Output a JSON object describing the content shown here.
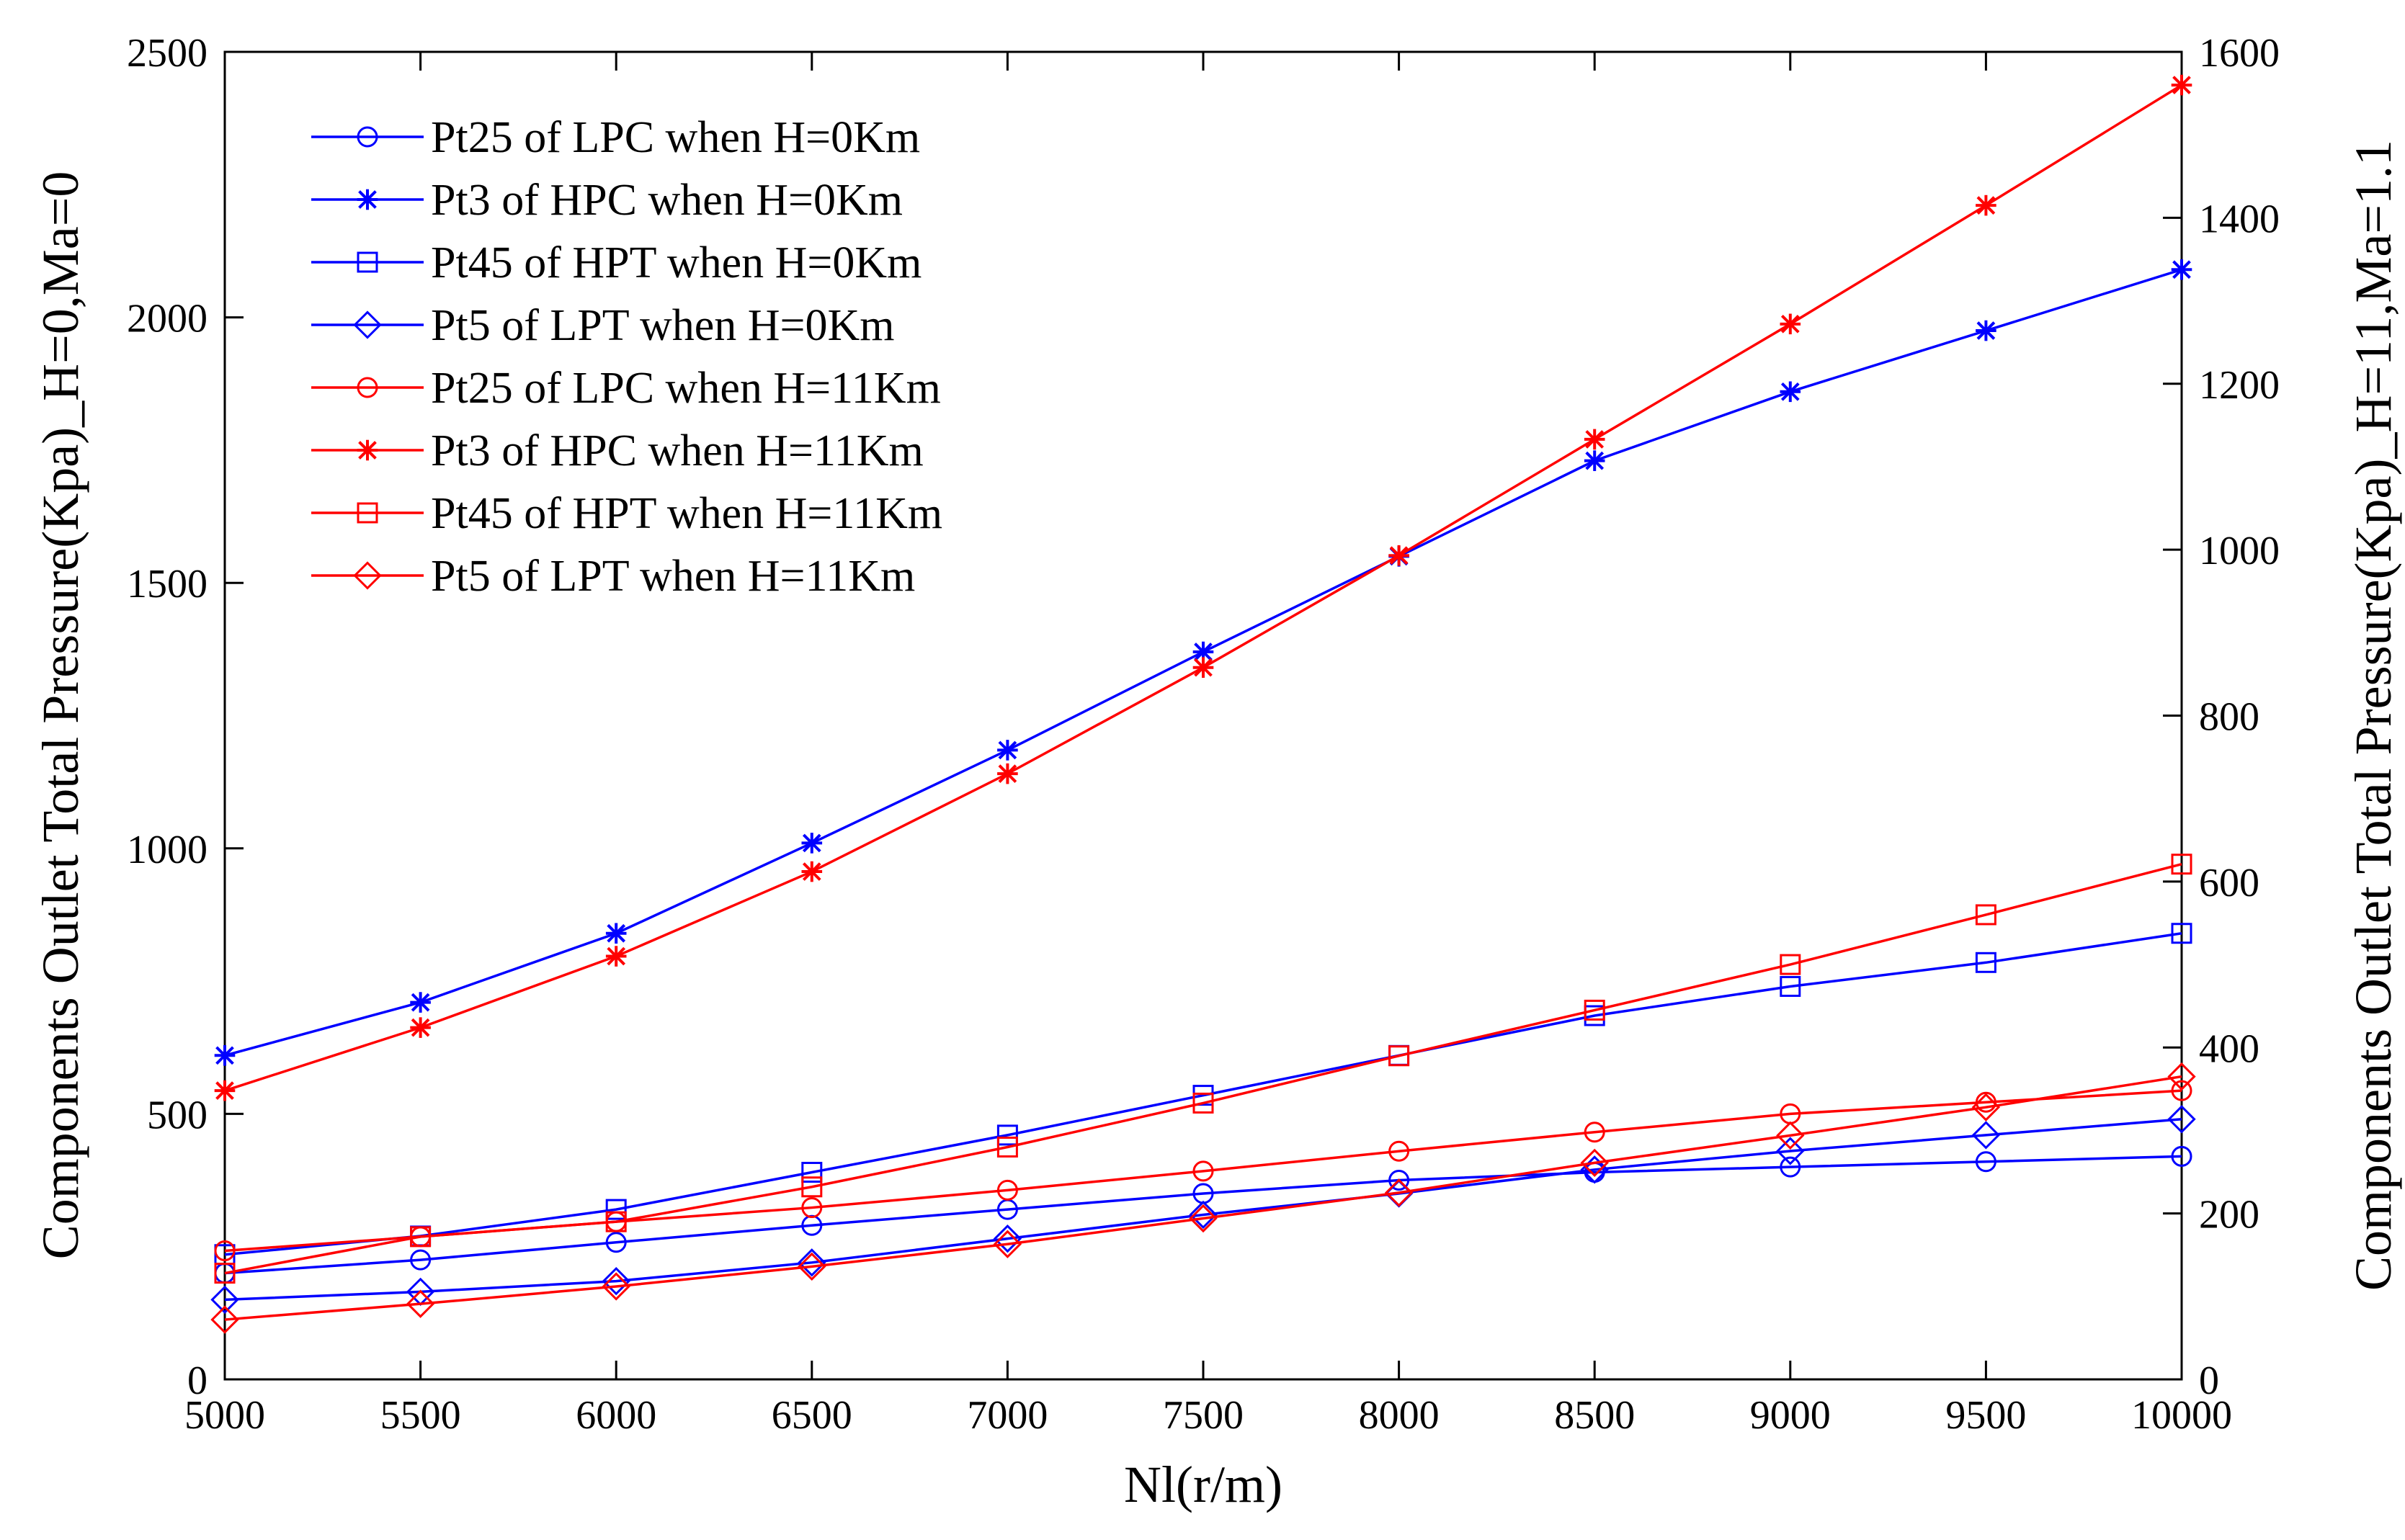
{
  "chart_data": {
    "type": "line",
    "xlabel": "Nl(r/m)",
    "ylabel": "Components Outlet Total Pressure(Kpa)_H=0,Ma=0",
    "ylabel_right": "Components Outlet Total Pressure(Kpa)_H=11,Ma=1.1",
    "xlim": [
      5000,
      10000
    ],
    "ylim": [
      0,
      2500
    ],
    "ylim_right": [
      0,
      1600
    ],
    "x_ticks": [
      "5000",
      "5500",
      "6000",
      "6500",
      "7000",
      "7500",
      "8000",
      "8500",
      "9000",
      "9500",
      "10000"
    ],
    "y_ticks": [
      "0",
      "500",
      "1000",
      "1500",
      "2000",
      "2500"
    ],
    "y_ticks_right": [
      "0",
      "200",
      "400",
      "600",
      "800",
      "1000",
      "1200",
      "1400",
      "1600"
    ],
    "grid": false,
    "legend_position": "top-left",
    "x": [
      5000,
      5500,
      6000,
      6500,
      7000,
      7500,
      8000,
      8500,
      9000,
      9500,
      10000
    ],
    "series": [
      {
        "name": "Pt25 of LPC when H=0Km",
        "axis": "left",
        "color": "#0000ff",
        "marker": "circle",
        "values": [
          200,
          225,
          258,
          290,
          320,
          350,
          375,
          390,
          400,
          410,
          420
        ]
      },
      {
        "name": "Pt3 of HPC when H=0Km",
        "axis": "left",
        "color": "#0000ff",
        "marker": "asterisk",
        "values": [
          610,
          710,
          840,
          1010,
          1185,
          1370,
          1550,
          1730,
          1860,
          1975,
          2090
        ]
      },
      {
        "name": "Pt45 of HPT when H=0Km",
        "axis": "left",
        "color": "#0000ff",
        "marker": "square",
        "values": [
          235,
          270,
          320,
          390,
          460,
          535,
          610,
          685,
          740,
          785,
          840
        ]
      },
      {
        "name": "Pt5 of LPT when H=0Km",
        "axis": "left",
        "color": "#0000ff",
        "marker": "diamond",
        "values": [
          150,
          165,
          185,
          220,
          265,
          310,
          350,
          395,
          430,
          460,
          490
        ]
      },
      {
        "name": "Pt25 of LPC when H=11Km",
        "axis": "right",
        "color": "#ff0000",
        "marker": "circle",
        "values": [
          155,
          172,
          190,
          207,
          228,
          251,
          275,
          298,
          320,
          334,
          348
        ]
      },
      {
        "name": "Pt3 of HPC when H=11Km",
        "axis": "right",
        "color": "#ff0000",
        "marker": "asterisk",
        "values": [
          348,
          424,
          510,
          612,
          730,
          858,
          993,
          1133,
          1272,
          1415,
          1560
        ]
      },
      {
        "name": "Pt45 of HPT when H=11Km",
        "axis": "right",
        "color": "#ff0000",
        "marker": "square",
        "values": [
          128,
          172,
          190,
          232,
          280,
          333,
          390,
          445,
          500,
          560,
          621
        ]
      },
      {
        "name": "Pt5 of LPT when H=11Km",
        "axis": "right",
        "color": "#ff0000",
        "marker": "diamond",
        "values": [
          72,
          91,
          112,
          136,
          163,
          194,
          225,
          261,
          294,
          328,
          365
        ]
      }
    ]
  }
}
